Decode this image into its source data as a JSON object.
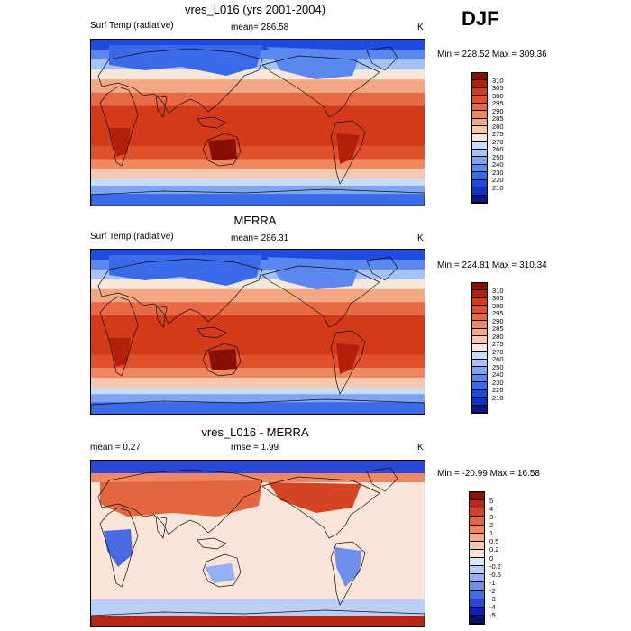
{
  "season": "DJF",
  "colors": {
    "temp": [
      "#0a1a8c",
      "#1030c8",
      "#1e4be0",
      "#3a6ae8",
      "#5a88ee",
      "#7ea4f2",
      "#a6c2f6",
      "#cadcfa",
      "#f6e8dc",
      "#f6c8ae",
      "#f2a882",
      "#ee8860",
      "#e86a44",
      "#e0502c",
      "#d23a1a",
      "#b2200c",
      "#861004"
    ],
    "diff": [
      "#081070",
      "#1020b8",
      "#2a48d8",
      "#4a6ae4",
      "#6e8eec",
      "#94b0f2",
      "#bacef8",
      "#dde8fb",
      "#fbe4d8",
      "#f8c8b0",
      "#f4a888",
      "#ee8864",
      "#e4663e",
      "#d44424",
      "#b82810",
      "#8c1204"
    ]
  },
  "chart_data": [
    {
      "type": "heatmap",
      "title": "vres_L016 (yrs 2001-2004)",
      "variable": "Surf Temp (radiative)",
      "mean_text": "mean= 286.58",
      "units": "K",
      "minmax_text": "Min = 228.52 Max = 309.36",
      "min": 228.52,
      "max": 309.36,
      "mean": 286.58,
      "colorbar_levels": [
        "310",
        "305",
        "300",
        "295",
        "290",
        "285",
        "280",
        "275",
        "270",
        "260",
        "250",
        "240",
        "230",
        "220",
        "210"
      ]
    },
    {
      "type": "heatmap",
      "title": "MERRA",
      "variable": "Surf Temp (radiative)",
      "mean_text": "mean= 286.31",
      "units": "K",
      "minmax_text": "Min = 224.81 Max = 310.34",
      "min": 224.81,
      "max": 310.34,
      "mean": 286.31,
      "colorbar_levels": [
        "310",
        "305",
        "300",
        "295",
        "290",
        "285",
        "280",
        "275",
        "270",
        "260",
        "250",
        "240",
        "230",
        "220",
        "210"
      ]
    },
    {
      "type": "heatmap",
      "title": "vres_L016 - MERRA",
      "mean_text": "mean =   0.27",
      "rmse_text": "rmse =   1.99",
      "units": "K",
      "minmax_text": "Min = -20.99 Max =  16.58",
      "min": -20.99,
      "max": 16.58,
      "mean": 0.27,
      "rmse": 1.99,
      "colorbar_levels": [
        "5",
        "4",
        "3",
        "2",
        "1",
        "0.5",
        "0.2",
        "0",
        "-0.2",
        "-0.5",
        "-1",
        "-2",
        "-3",
        "-4",
        "-5"
      ]
    }
  ]
}
